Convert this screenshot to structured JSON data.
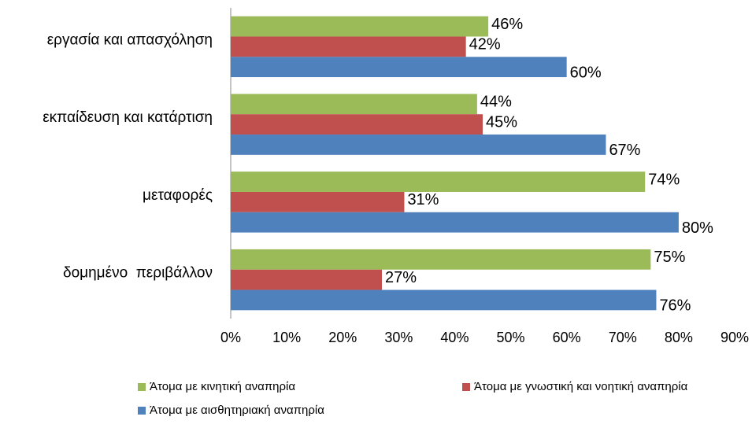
{
  "chart_data": {
    "type": "bar",
    "orientation": "horizontal",
    "categories": [
      "εργασία και απασχόληση",
      "εκπαίδευση και κατάρτιση",
      "μεταφορές",
      "δομημένο  περιβάλλον"
    ],
    "series": [
      {
        "name": "Άτομα με κινητική αναπηρία",
        "color": "#9bbb59",
        "values": [
          46,
          44,
          74,
          75
        ],
        "value_labels": [
          "46%",
          "44%",
          "74%",
          "75%"
        ]
      },
      {
        "name": "Άτομα με γνωστική και νοητική αναπηρία",
        "color": "#c0504d",
        "values": [
          42,
          45,
          31,
          27
        ],
        "value_labels": [
          "42%",
          "45%",
          "31%",
          "27%"
        ]
      },
      {
        "name": "Άτομα με αισθητηριακή αναπηρία",
        "color": "#4f81bd",
        "values": [
          60,
          67,
          80,
          76
        ],
        "value_labels": [
          "60%",
          "67%",
          "80%",
          "76%"
        ]
      }
    ],
    "xlim": [
      0,
      90
    ],
    "xticks": [
      {
        "value": 0,
        "label": "0%"
      },
      {
        "value": 10,
        "label": "10%"
      },
      {
        "value": 20,
        "label": "20%"
      },
      {
        "value": 30,
        "label": "30%"
      },
      {
        "value": 40,
        "label": "40%"
      },
      {
        "value": 50,
        "label": "50%"
      },
      {
        "value": 60,
        "label": "60%"
      },
      {
        "value": 70,
        "label": "70%"
      },
      {
        "value": 80,
        "label": "80%"
      },
      {
        "value": 90,
        "label": "90%"
      }
    ],
    "grid": false,
    "legend": "bottom"
  }
}
